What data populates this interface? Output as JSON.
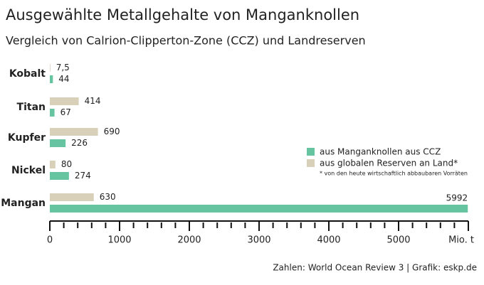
{
  "chart_data": {
    "type": "bar",
    "orientation": "horizontal",
    "title": "Ausgewählte Metallgehalte von Manganknollen",
    "subtitle": "Vergleich von Calrion-Clipperton-Zone (CCZ) und Landreserven",
    "categories": [
      "Kobalt",
      "Titan",
      "Kupfer",
      "Nickel",
      "Mangan"
    ],
    "series": [
      {
        "name": "aus globalen Reserven an Land*",
        "color": "#d9d0b9",
        "values": [
          7.5,
          414,
          690,
          80,
          630
        ],
        "value_labels": [
          "7,5",
          "414",
          "690",
          "80",
          "630"
        ]
      },
      {
        "name": "aus Manganknollen aus CCZ",
        "color": "#66c4a0",
        "values": [
          44,
          67,
          226,
          274,
          5992
        ]
      }
    ],
    "xlim": [
      0,
      6000
    ],
    "xticks": [
      0,
      1000,
      2000,
      3000,
      4000,
      5000,
      {
        "value": 6000,
        "label": "Mio. t"
      }
    ],
    "minor_xticks": [
      200,
      400,
      600,
      800,
      1200,
      1400,
      1600,
      1800,
      2200,
      2400,
      2600,
      2800,
      3200,
      3400,
      3600,
      3800,
      4200,
      4400,
      4600,
      4800,
      5200,
      5400,
      5600,
      5800
    ],
    "footnote": "* von den heute wirtschaftlich abbaubaren Vorräten",
    "source": "Zahlen: World Ocean Review 3 | Grafik: eskp.de"
  }
}
